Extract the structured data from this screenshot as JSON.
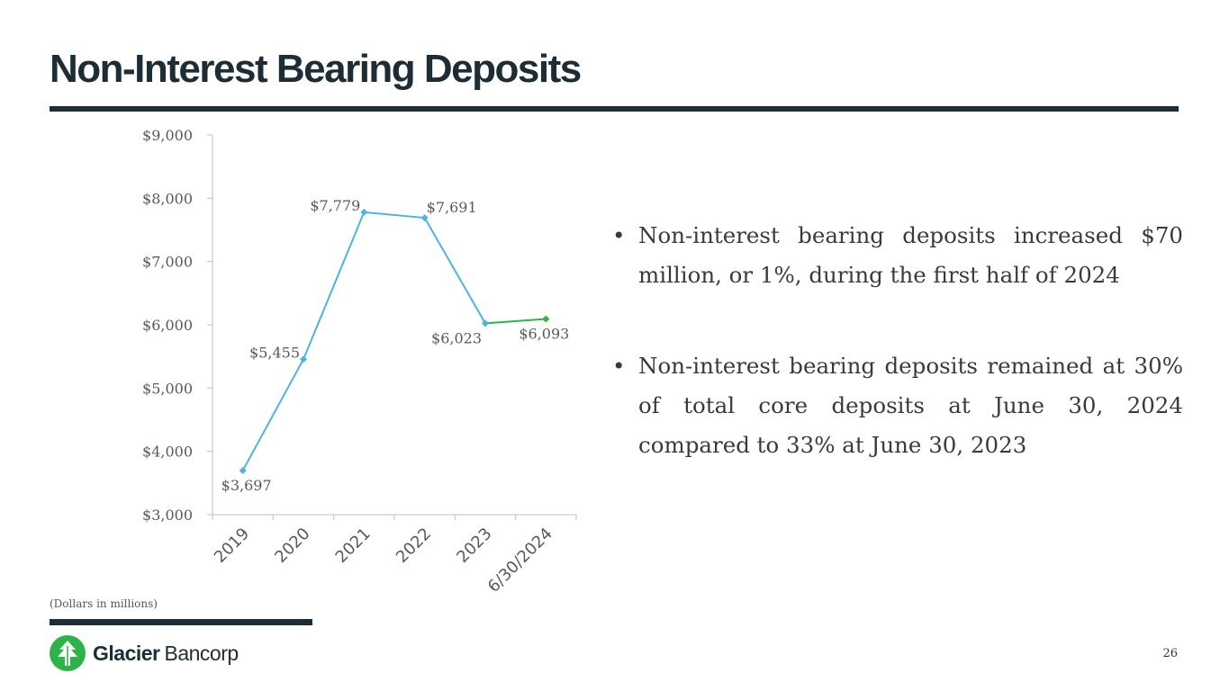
{
  "slide": {
    "title": "Non-Interest Bearing Deposits",
    "footnote": "(Dollars in millions)",
    "page_number": "26"
  },
  "bullets": [
    {
      "marker": "•",
      "text": "Non-interest bearing deposits increased $70 million, or 1%, during the first half of 2024"
    },
    {
      "marker": "•",
      "text": "Non-interest bearing deposits remained at 30% of total core deposits at June 30, 2024 compared to 33% at June 30, 2023"
    }
  ],
  "logo": {
    "name_bold": "Glacier",
    "name_light": "Bancorp",
    "icon": "glacier-tree-icon",
    "color": "#2db34a"
  },
  "colors": {
    "title": "#1d2d35",
    "line_historical": "#4bb5e1",
    "line_latest": "#2db34a"
  },
  "chart_data": {
    "type": "line",
    "categories": [
      "2019",
      "2020",
      "2021",
      "2022",
      "2023",
      "6/30/2024"
    ],
    "values": [
      3697,
      5455,
      7779,
      7691,
      6023,
      6093
    ],
    "data_labels": [
      "$3,697",
      "$5,455",
      "$7,779",
      "$7,691",
      "$6,023",
      "$6,093"
    ],
    "y_ticks": [
      3000,
      4000,
      5000,
      6000,
      7000,
      8000,
      9000
    ],
    "y_tick_labels": [
      "$3,000",
      "$4,000",
      "$5,000",
      "$6,000",
      "$7,000",
      "$8,000",
      "$9,000"
    ],
    "ylim": [
      3000,
      9000
    ],
    "title": "",
    "xlabel": "",
    "ylabel": "",
    "grid": false,
    "legend": "none",
    "latest_segment_color": "#2db34a",
    "series_color": "#4bb5e1"
  }
}
